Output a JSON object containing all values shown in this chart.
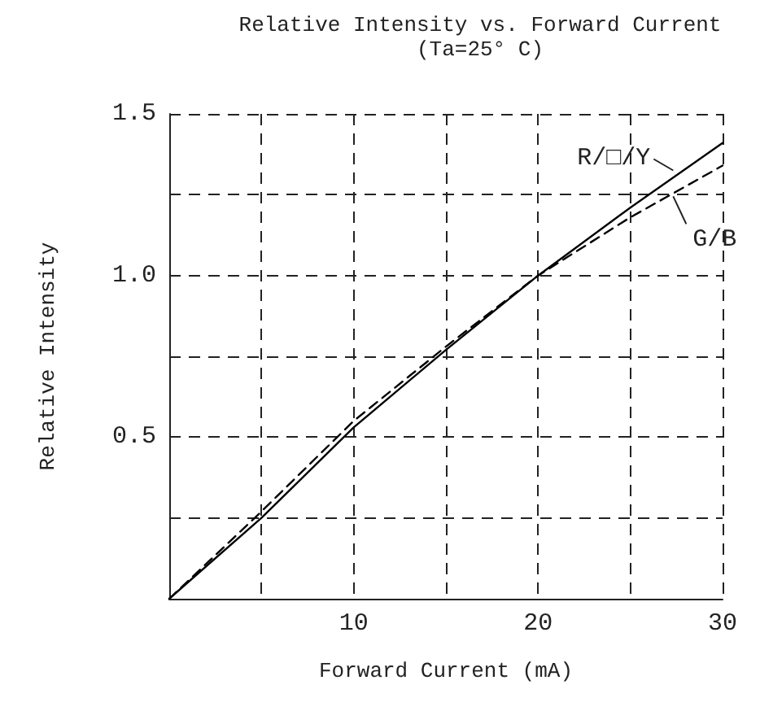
{
  "chart_data": {
    "type": "line",
    "title": "Relative Intensity vs. Forward Current",
    "subtitle": "(Ta=25° C)",
    "xlabel": "Forward Current (mA)",
    "ylabel": "Relative Intensity",
    "x": [
      0,
      5,
      10,
      15,
      20,
      25,
      30
    ],
    "series": [
      {
        "name": "R/□/Y",
        "color": "#000000",
        "line_style": "solid",
        "values": [
          0,
          0.25,
          0.53,
          0.77,
          1.0,
          1.21,
          1.41
        ]
      },
      {
        "name": "G/B",
        "color": "#000000",
        "line_style": "dashed",
        "values": [
          0,
          0.27,
          0.55,
          0.78,
          1.0,
          1.18,
          1.34
        ]
      }
    ],
    "xlim": [
      0,
      30
    ],
    "xticks": [
      {
        "value": 0,
        "label": null
      },
      {
        "value": 5,
        "label": null
      },
      10,
      {
        "value": 15,
        "label": null
      },
      20,
      {
        "value": 25,
        "label": null
      },
      30
    ],
    "ylim": [
      0,
      1.5
    ],
    "yticks": [
      {
        "value": 0,
        "label": null
      },
      {
        "value": 0.25,
        "label": null
      },
      {
        "value": 0.5,
        "label": "0.5"
      },
      {
        "value": 0.75,
        "label": null
      },
      {
        "value": 1.0,
        "label": "1.0"
      },
      {
        "value": 1.25,
        "label": null
      },
      {
        "value": 1.5,
        "label": "1.5"
      }
    ],
    "grid": true,
    "legend": false,
    "marker": "none"
  }
}
